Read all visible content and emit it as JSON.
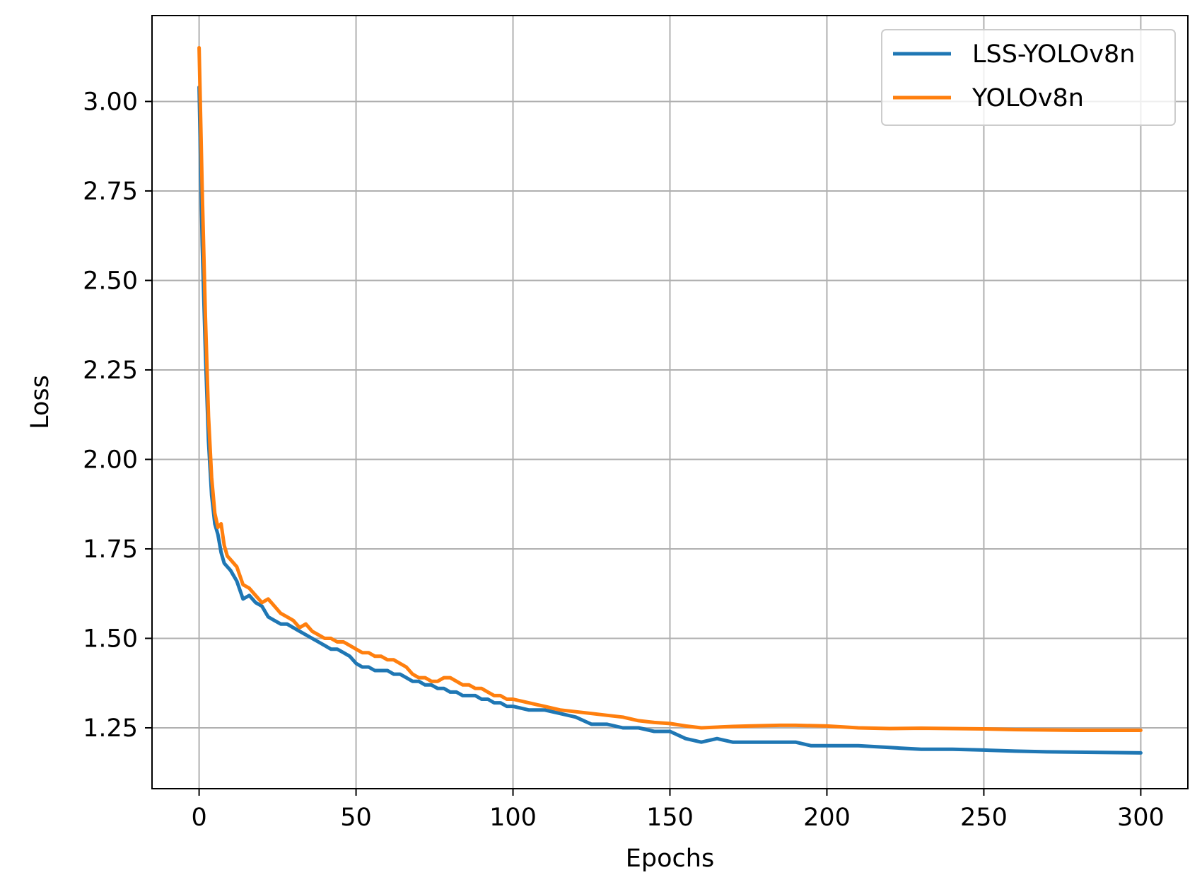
{
  "chart_data": {
    "type": "line",
    "title": "",
    "xlabel": "Epochs",
    "ylabel": "Loss",
    "xlim": [
      -15,
      315
    ],
    "ylim": [
      1.08,
      3.24
    ],
    "xticks": [
      0,
      50,
      100,
      150,
      200,
      250,
      300
    ],
    "yticks": [
      1.25,
      1.5,
      1.75,
      2.0,
      2.25,
      2.5,
      2.75,
      3.0
    ],
    "xtick_labels": [
      "0",
      "50",
      "100",
      "150",
      "200",
      "250",
      "300"
    ],
    "ytick_labels": [
      "1.25",
      "1.50",
      "1.75",
      "2.00",
      "2.25",
      "2.50",
      "2.75",
      "3.00"
    ],
    "grid": true,
    "legend_position": "top-right",
    "series": [
      {
        "name": "LSS-YOLOv8n",
        "color": "#1f77b4",
        "points": [
          [
            0,
            3.04
          ],
          [
            1,
            2.6
          ],
          [
            2,
            2.3
          ],
          [
            3,
            2.05
          ],
          [
            4,
            1.9
          ],
          [
            5,
            1.82
          ],
          [
            6,
            1.79
          ],
          [
            7,
            1.74
          ],
          [
            8,
            1.71
          ],
          [
            9,
            1.7
          ],
          [
            10,
            1.69
          ],
          [
            12,
            1.66
          ],
          [
            14,
            1.61
          ],
          [
            16,
            1.62
          ],
          [
            18,
            1.6
          ],
          [
            20,
            1.59
          ],
          [
            22,
            1.56
          ],
          [
            24,
            1.55
          ],
          [
            26,
            1.54
          ],
          [
            28,
            1.54
          ],
          [
            30,
            1.53
          ],
          [
            32,
            1.52
          ],
          [
            34,
            1.51
          ],
          [
            36,
            1.5
          ],
          [
            38,
            1.49
          ],
          [
            40,
            1.48
          ],
          [
            42,
            1.47
          ],
          [
            44,
            1.47
          ],
          [
            46,
            1.46
          ],
          [
            48,
            1.45
          ],
          [
            50,
            1.43
          ],
          [
            52,
            1.42
          ],
          [
            54,
            1.42
          ],
          [
            56,
            1.41
          ],
          [
            58,
            1.41
          ],
          [
            60,
            1.41
          ],
          [
            62,
            1.4
          ],
          [
            64,
            1.4
          ],
          [
            66,
            1.39
          ],
          [
            68,
            1.38
          ],
          [
            70,
            1.38
          ],
          [
            72,
            1.37
          ],
          [
            74,
            1.37
          ],
          [
            76,
            1.36
          ],
          [
            78,
            1.36
          ],
          [
            80,
            1.35
          ],
          [
            82,
            1.35
          ],
          [
            84,
            1.34
          ],
          [
            86,
            1.34
          ],
          [
            88,
            1.34
          ],
          [
            90,
            1.33
          ],
          [
            92,
            1.33
          ],
          [
            94,
            1.32
          ],
          [
            96,
            1.32
          ],
          [
            98,
            1.31
          ],
          [
            100,
            1.31
          ],
          [
            105,
            1.3
          ],
          [
            110,
            1.3
          ],
          [
            115,
            1.29
          ],
          [
            120,
            1.28
          ],
          [
            125,
            1.26
          ],
          [
            130,
            1.26
          ],
          [
            135,
            1.25
          ],
          [
            140,
            1.25
          ],
          [
            145,
            1.24
          ],
          [
            150,
            1.24
          ],
          [
            155,
            1.22
          ],
          [
            160,
            1.21
          ],
          [
            165,
            1.22
          ],
          [
            170,
            1.21
          ],
          [
            175,
            1.21
          ],
          [
            180,
            1.21
          ],
          [
            185,
            1.21
          ],
          [
            190,
            1.21
          ],
          [
            195,
            1.2
          ],
          [
            200,
            1.2
          ],
          [
            210,
            1.2
          ],
          [
            220,
            1.195
          ],
          [
            230,
            1.19
          ],
          [
            240,
            1.19
          ],
          [
            250,
            1.188
          ],
          [
            260,
            1.185
          ],
          [
            270,
            1.183
          ],
          [
            280,
            1.182
          ],
          [
            290,
            1.181
          ],
          [
            300,
            1.18
          ]
        ]
      },
      {
        "name": "YOLOv8n",
        "color": "#ff7f0e",
        "points": [
          [
            0,
            3.15
          ],
          [
            1,
            2.75
          ],
          [
            2,
            2.4
          ],
          [
            3,
            2.12
          ],
          [
            4,
            1.95
          ],
          [
            5,
            1.85
          ],
          [
            6,
            1.81
          ],
          [
            7,
            1.82
          ],
          [
            8,
            1.76
          ],
          [
            9,
            1.73
          ],
          [
            10,
            1.72
          ],
          [
            12,
            1.7
          ],
          [
            14,
            1.65
          ],
          [
            16,
            1.64
          ],
          [
            18,
            1.62
          ],
          [
            20,
            1.6
          ],
          [
            22,
            1.61
          ],
          [
            24,
            1.59
          ],
          [
            26,
            1.57
          ],
          [
            28,
            1.56
          ],
          [
            30,
            1.55
          ],
          [
            32,
            1.53
          ],
          [
            34,
            1.54
          ],
          [
            36,
            1.52
          ],
          [
            38,
            1.51
          ],
          [
            40,
            1.5
          ],
          [
            42,
            1.5
          ],
          [
            44,
            1.49
          ],
          [
            46,
            1.49
          ],
          [
            48,
            1.48
          ],
          [
            50,
            1.47
          ],
          [
            52,
            1.46
          ],
          [
            54,
            1.46
          ],
          [
            56,
            1.45
          ],
          [
            58,
            1.45
          ],
          [
            60,
            1.44
          ],
          [
            62,
            1.44
          ],
          [
            64,
            1.43
          ],
          [
            66,
            1.42
          ],
          [
            68,
            1.4
          ],
          [
            70,
            1.39
          ],
          [
            72,
            1.39
          ],
          [
            74,
            1.38
          ],
          [
            76,
            1.38
          ],
          [
            78,
            1.39
          ],
          [
            80,
            1.39
          ],
          [
            82,
            1.38
          ],
          [
            84,
            1.37
          ],
          [
            86,
            1.37
          ],
          [
            88,
            1.36
          ],
          [
            90,
            1.36
          ],
          [
            92,
            1.35
          ],
          [
            94,
            1.34
          ],
          [
            96,
            1.34
          ],
          [
            98,
            1.33
          ],
          [
            100,
            1.33
          ],
          [
            105,
            1.32
          ],
          [
            110,
            1.31
          ],
          [
            115,
            1.3
          ],
          [
            120,
            1.295
          ],
          [
            125,
            1.29
          ],
          [
            130,
            1.285
          ],
          [
            135,
            1.28
          ],
          [
            140,
            1.27
          ],
          [
            145,
            1.265
          ],
          [
            150,
            1.262
          ],
          [
            155,
            1.255
          ],
          [
            160,
            1.25
          ],
          [
            165,
            1.252
          ],
          [
            170,
            1.254
          ],
          [
            175,
            1.255
          ],
          [
            180,
            1.256
          ],
          [
            185,
            1.257
          ],
          [
            190,
            1.257
          ],
          [
            195,
            1.256
          ],
          [
            200,
            1.255
          ],
          [
            210,
            1.25
          ],
          [
            220,
            1.248
          ],
          [
            230,
            1.249
          ],
          [
            240,
            1.248
          ],
          [
            250,
            1.247
          ],
          [
            260,
            1.245
          ],
          [
            270,
            1.244
          ],
          [
            280,
            1.243
          ],
          [
            290,
            1.243
          ],
          [
            300,
            1.243
          ]
        ]
      }
    ]
  }
}
